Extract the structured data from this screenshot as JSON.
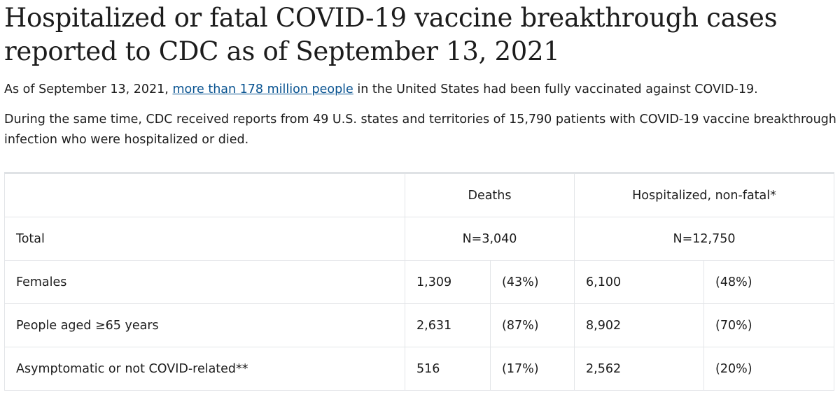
{
  "title": "Hospitalized or fatal COVID-19 vaccine breakthrough cases reported to CDC as of September 13, 2021",
  "para1": {
    "before": "As of September 13, 2021, ",
    "link": "more than 178 million people",
    "after": " in the United States had been fully vaccinated against COVID-19."
  },
  "para2": "During the same time, CDC received reports from 49 U.S. states and territories of 15,790 patients with COVID-19 vaccine breakthrough infection who were hospitalized or died.",
  "table": {
    "headers": [
      "",
      "Deaths",
      "Hospitalized, non-fatal*"
    ],
    "total": {
      "label": "Total",
      "deaths": "N=3,040",
      "hosp": "N=12,750"
    },
    "rows": [
      {
        "label": "Females",
        "d": "1,309",
        "dp": "(43%)",
        "h": "6,100",
        "hp": "(48%)"
      },
      {
        "label": "People aged ≥65 years",
        "d": "2,631",
        "dp": "(87%)",
        "h": "8,902",
        "hp": "(70%)"
      },
      {
        "label": "Asymptomatic or not COVID-related**",
        "d": "516",
        "dp": "(17%)",
        "h": "2,562",
        "hp": "(20%)"
      }
    ]
  }
}
